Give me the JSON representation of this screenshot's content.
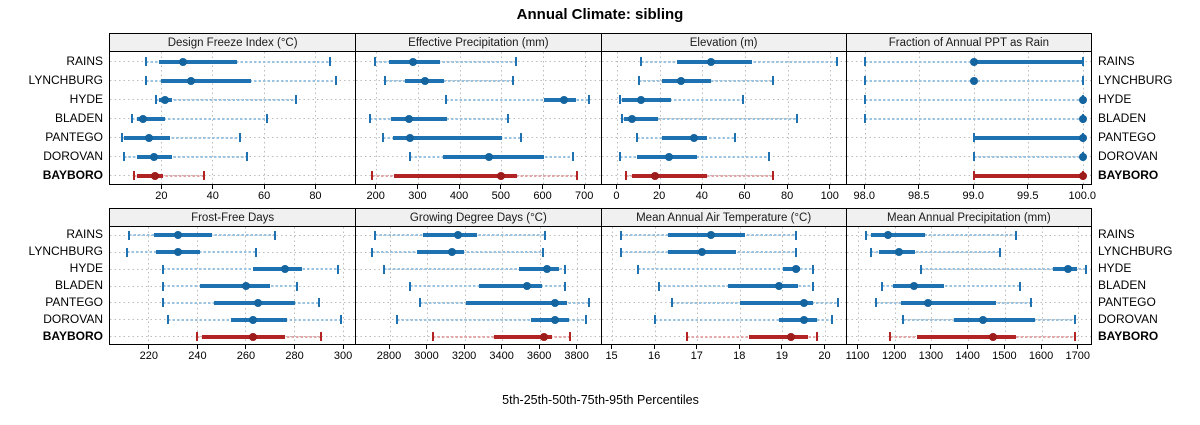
{
  "title": "Annual Climate: sibling",
  "xlabel": "5th-25th-50th-75th-95th Percentiles",
  "series_labels": [
    "RAINS",
    "LYNCHBURG",
    "HYDE",
    "BLADEN",
    "PANTEGO",
    "DOROVAN",
    "BAYBORO"
  ],
  "highlight_label": "BAYBORO",
  "colors": {
    "blue": "#1f72b2",
    "blue_light": "#9cc3e0",
    "blue_dot": "#14649f",
    "red": "#b22423",
    "red_light": "#e2a7a6",
    "red_dot": "#9d1b1b",
    "grid": "#bcbcbc",
    "strip_bg": "#f0f0f0",
    "border": "#000000"
  },
  "chart_data": {
    "type": "percentile-interval",
    "title": "Annual Climate: sibling",
    "xlabel": "5th-25th-50th-75th-95th Percentiles",
    "percentiles": [
      5,
      25,
      50,
      75,
      95
    ],
    "legend_position": "none",
    "grid": "dotted",
    "panels": [
      {
        "title": "Design Freeze Index (°C)",
        "xlim": [
          0,
          95.5
        ],
        "tick_values": [
          20,
          40,
          60,
          80
        ],
        "tick_labels": [
          "20",
          "40",
          "60",
          "80"
        ],
        "series": [
          {
            "name": "RAINS",
            "q": [
              14,
              19,
              28.5,
              49.5,
              85.5
            ]
          },
          {
            "name": "LYNCHBURG",
            "q": [
              14,
              20,
              31.5,
              55,
              88
            ]
          },
          {
            "name": "HYDE",
            "q": [
              18,
              19,
              21.5,
              24,
              72.5
            ]
          },
          {
            "name": "BLADEN",
            "q": [
              8.5,
              10.5,
              13,
              21.5,
              61
            ]
          },
          {
            "name": "PANTEGO",
            "q": [
              4.5,
              5.5,
              15,
              23.5,
              50.5
            ]
          },
          {
            "name": "DOROVAN",
            "q": [
              5.5,
              10.5,
              17,
              24,
              53.5
            ]
          },
          {
            "name": "BAYBORO",
            "q": [
              9.5,
              10.5,
              17.5,
              20.5,
              36.5
            ]
          }
        ]
      },
      {
        "title": "Effective Precipitation (mm)",
        "xlim": [
          151,
          739
        ],
        "tick_values": [
          200,
          300,
          400,
          500,
          600,
          700
        ],
        "tick_labels": [
          "200",
          "300",
          "400",
          "500",
          "600",
          "700"
        ],
        "series": [
          {
            "name": "RAINS",
            "q": [
              196,
              230,
              287,
              351,
              534
            ]
          },
          {
            "name": "LYNCHBURG",
            "q": [
              220,
              267,
              315,
              362,
              526
            ]
          },
          {
            "name": "HYDE",
            "q": [
              365,
              600,
              648,
              678,
              710
            ]
          },
          {
            "name": "BLADEN",
            "q": [
              185,
              235,
              277,
              368,
              515
            ]
          },
          {
            "name": "PANTEGO",
            "q": [
              215,
              239,
              279,
              500,
              547
            ]
          },
          {
            "name": "DOROVAN",
            "q": [
              279,
              360,
              469,
              600,
              670
            ]
          },
          {
            "name": "BAYBORO",
            "q": [
              188,
              241,
              499,
              537,
              680
            ]
          }
        ]
      },
      {
        "title": "Elevation (m)",
        "xlim": [
          -7.5,
          107.5
        ],
        "tick_values": [
          0,
          20,
          40,
          60,
          80,
          100
        ],
        "tick_labels": [
          "0",
          "20",
          "40",
          "60",
          "80",
          "100"
        ],
        "series": [
          {
            "name": "RAINS",
            "q": [
              11,
              28,
              44,
              63,
              103
            ]
          },
          {
            "name": "LYNCHBURG",
            "q": [
              10,
              21,
              30,
              44,
              73
            ]
          },
          {
            "name": "HYDE",
            "q": [
              1,
              2,
              11,
              25,
              59
            ]
          },
          {
            "name": "BLADEN",
            "q": [
              2,
              3,
              7,
              19,
              84
            ]
          },
          {
            "name": "PANTEGO",
            "q": [
              9,
              21,
              36,
              42,
              55
            ]
          },
          {
            "name": "DOROVAN",
            "q": [
              1,
              9,
              24,
              37.5,
              71
            ]
          },
          {
            "name": "BAYBORO",
            "q": [
              4,
              7,
              17.5,
              42,
              73
            ]
          }
        ]
      },
      {
        "title": "Fraction of Annual PPT as Rain",
        "xlim": [
          97.83,
          100.08
        ],
        "tick_values": [
          98.0,
          98.5,
          99.0,
          99.5,
          100.0
        ],
        "tick_labels": [
          "98.0",
          "98.5",
          "99.0",
          "99.5",
          "100.0"
        ],
        "series": [
          {
            "name": "RAINS",
            "q": [
              98.0,
              99.0,
              99.0,
              100.0,
              100.0
            ]
          },
          {
            "name": "LYNCHBURG",
            "q": [
              98.0,
              99.0,
              99.0,
              99.0,
              100.0
            ]
          },
          {
            "name": "HYDE",
            "q": [
              98.0,
              100.0,
              100.0,
              100.0,
              100.0
            ]
          },
          {
            "name": "BLADEN",
            "q": [
              98.0,
              100.0,
              100.0,
              100.0,
              100.0
            ]
          },
          {
            "name": "PANTEGO",
            "q": [
              99.0,
              99.0,
              100.0,
              100.0,
              100.0
            ]
          },
          {
            "name": "DOROVAN",
            "q": [
              99.0,
              100.0,
              100.0,
              100.0,
              100.0
            ]
          },
          {
            "name": "BAYBORO",
            "q": [
              99.0,
              99.0,
              100.0,
              100.0,
              100.0
            ]
          }
        ]
      },
      {
        "title": "Frost-Free Days",
        "xlim": [
          204,
          305
        ],
        "tick_values": [
          220,
          240,
          260,
          280,
          300
        ],
        "tick_labels": [
          "220",
          "240",
          "260",
          "280",
          "300"
        ],
        "series": [
          {
            "name": "RAINS",
            "q": [
              212,
              222,
              232,
              246,
              272
            ]
          },
          {
            "name": "LYNCHBURG",
            "q": [
              211,
              223,
              232,
              241,
              264
            ]
          },
          {
            "name": "HYDE",
            "q": [
              226,
              263,
              276,
              283,
              298
            ]
          },
          {
            "name": "BLADEN",
            "q": [
              226,
              241,
              260,
              270,
              281
            ]
          },
          {
            "name": "PANTEGO",
            "q": [
              226,
              247,
              265,
              280,
              290
            ]
          },
          {
            "name": "DOROVAN",
            "q": [
              228,
              254,
              263,
              277,
              299
            ]
          },
          {
            "name": "BAYBORO",
            "q": [
              240,
              242,
              263,
              276,
              291
            ]
          }
        ]
      },
      {
        "title": "Growing Degree Days (°C)",
        "xlim": [
          2620,
          3927
        ],
        "tick_values": [
          2800,
          3000,
          3200,
          3400,
          3600,
          3800
        ],
        "tick_labels": [
          "2800",
          "3000",
          "3200",
          "3400",
          "3600",
          "3800"
        ],
        "series": [
          {
            "name": "RAINS",
            "q": [
              2720,
              2975,
              3160,
              3265,
              3625
            ]
          },
          {
            "name": "LYNCHBURG",
            "q": [
              2705,
              2945,
              3130,
              3195,
              3615
            ]
          },
          {
            "name": "HYDE",
            "q": [
              2770,
              3490,
              3635,
              3700,
              3730
            ]
          },
          {
            "name": "BLADEN",
            "q": [
              2905,
              3275,
              3530,
              3610,
              3730
            ]
          },
          {
            "name": "PANTEGO",
            "q": [
              2960,
              3205,
              3680,
              3745,
              3860
            ]
          },
          {
            "name": "DOROVAN",
            "q": [
              2835,
              3550,
              3680,
              3755,
              3845
            ]
          },
          {
            "name": "BAYBORO",
            "q": [
              3030,
              3355,
              3620,
              3665,
              3760
            ]
          }
        ]
      },
      {
        "title": "Mean Annual Air Temperature (°C)",
        "xlim": [
          14.74,
          20.5
        ],
        "tick_values": [
          15,
          16,
          17,
          18,
          19,
          20
        ],
        "tick_labels": [
          "15",
          "16",
          "17",
          "18",
          "19",
          "20"
        ],
        "series": [
          {
            "name": "RAINS",
            "q": [
              15.2,
              16.3,
              17.3,
              18.1,
              19.3
            ]
          },
          {
            "name": "LYNCHBURG",
            "q": [
              15.2,
              16.3,
              17.1,
              17.9,
              19.3
            ]
          },
          {
            "name": "HYDE",
            "q": [
              15.6,
              19.0,
              19.3,
              19.4,
              19.7
            ]
          },
          {
            "name": "BLADEN",
            "q": [
              16.1,
              17.7,
              18.9,
              19.35,
              19.7
            ]
          },
          {
            "name": "PANTEGO",
            "q": [
              16.4,
              18.0,
              19.5,
              19.7,
              20.3
            ]
          },
          {
            "name": "DOROVAN",
            "q": [
              16.0,
              18.9,
              19.5,
              19.8,
              20.15
            ]
          },
          {
            "name": "BAYBORO",
            "q": [
              16.75,
              18.2,
              19.2,
              19.6,
              19.8
            ]
          }
        ]
      },
      {
        "title": "Mean Annual Precipitation (mm)",
        "xlim": [
          1068,
          1736
        ],
        "tick_values": [
          1100,
          1200,
          1300,
          1400,
          1500,
          1600,
          1700
        ],
        "tick_labels": [
          "1100",
          "1200",
          "1300",
          "1400",
          "1500",
          "1600",
          "1700"
        ],
        "series": [
          {
            "name": "RAINS",
            "q": [
              1120,
              1135,
              1180,
              1280,
              1530
            ]
          },
          {
            "name": "LYNCHBURG",
            "q": [
              1135,
              1157,
              1210,
              1255,
              1485
            ]
          },
          {
            "name": "HYDE",
            "q": [
              1270,
              1630,
              1670,
              1695,
              1720
            ]
          },
          {
            "name": "BLADEN",
            "q": [
              1165,
              1195,
              1250,
              1332,
              1540
            ]
          },
          {
            "name": "PANTEGO",
            "q": [
              1148,
              1215,
              1290,
              1475,
              1570
            ]
          },
          {
            "name": "DOROVAN",
            "q": [
              1220,
              1360,
              1440,
              1580,
              1690
            ]
          },
          {
            "name": "BAYBORO",
            "q": [
              1185,
              1260,
              1465,
              1530,
              1690
            ]
          }
        ]
      }
    ]
  }
}
